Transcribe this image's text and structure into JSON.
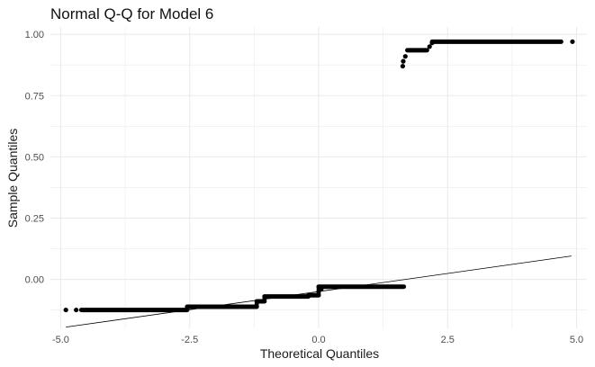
{
  "chart_data": {
    "type": "scatter",
    "title": "Normal Q-Q for Model 6",
    "xlabel": "Theoretical Quantiles",
    "ylabel": "Sample Quantiles",
    "xlim": [
      -5.2,
      5.2
    ],
    "ylim": [
      -0.2,
      1.03
    ],
    "x_ticks": [
      -5.0,
      -2.5,
      0.0,
      2.5,
      5.0
    ],
    "x_tick_labels": [
      "-5.0",
      "-2.5",
      "0.0",
      "2.5",
      "5.0"
    ],
    "y_ticks": [
      0.0,
      0.25,
      0.5,
      0.75,
      1.0
    ],
    "y_tick_labels": [
      "0.00",
      "0.25",
      "0.50",
      "0.75",
      "1.00"
    ],
    "grid": true,
    "reference_line": {
      "x": [
        -4.9,
        4.9
      ],
      "y": [
        -0.195,
        0.095
      ]
    },
    "segments": [
      {
        "x_start": -4.6,
        "x_end": -2.55,
        "y": -0.125
      },
      {
        "x_start": -2.55,
        "x_end": -1.2,
        "y": -0.112
      },
      {
        "x_start": -1.2,
        "x_end": -1.05,
        "y": -0.09
      },
      {
        "x_start": -1.05,
        "x_end": -0.2,
        "y": -0.07
      },
      {
        "x_start": -0.2,
        "x_end": 0.0,
        "y": -0.065
      },
      {
        "x_start": 0.0,
        "x_end": 1.65,
        "y": -0.03
      },
      {
        "x_start": 1.72,
        "x_end": 2.1,
        "y": 0.935
      },
      {
        "x_start": 2.2,
        "x_end": 4.7,
        "y": 0.97
      }
    ],
    "points": [
      {
        "x": -4.9,
        "y": -0.125
      },
      {
        "x": -4.7,
        "y": -0.125
      },
      {
        "x": 0.0,
        "y": -0.05
      },
      {
        "x": 0.05,
        "y": -0.04
      },
      {
        "x": 1.63,
        "y": 0.87
      },
      {
        "x": 1.64,
        "y": 0.89
      },
      {
        "x": 1.68,
        "y": 0.91
      },
      {
        "x": 2.15,
        "y": 0.95
      },
      {
        "x": 2.2,
        "y": 0.965
      },
      {
        "x": 4.92,
        "y": 0.97
      }
    ],
    "colors": {
      "points": "#000000",
      "line": "#000000",
      "grid": "#ebebeb",
      "background": "#ffffff"
    }
  }
}
